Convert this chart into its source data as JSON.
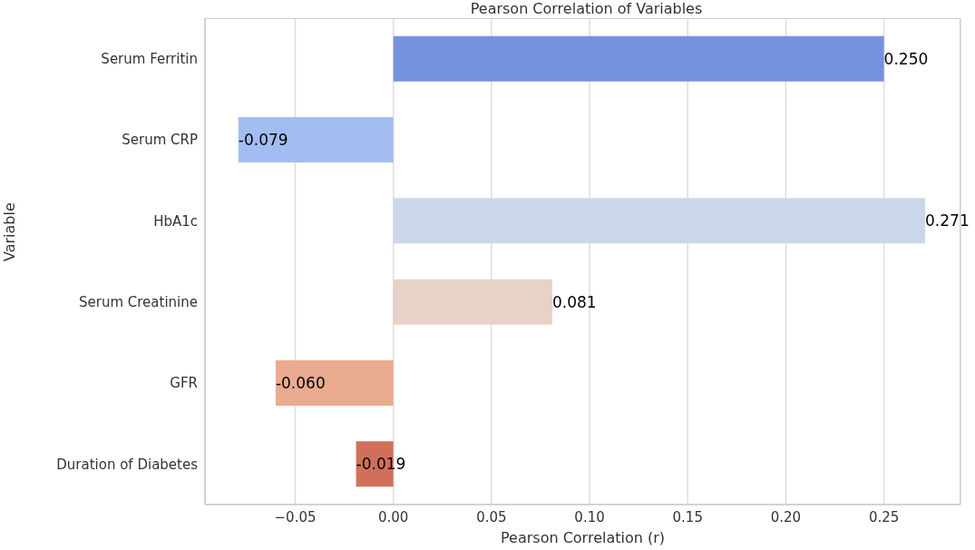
{
  "chart_data": {
    "type": "bar",
    "orientation": "horizontal",
    "title": "Pearson Correlation of Variables",
    "xlabel": "Pearson Correlation (r)",
    "ylabel": "Variable",
    "categories": [
      "Serum Ferritin",
      "Serum CRP",
      "HbA1c",
      "Serum Creatinine",
      "GFR",
      "Duration of Diabetes"
    ],
    "values": [
      0.25,
      -0.079,
      0.271,
      0.081,
      -0.06,
      -0.019
    ],
    "value_labels": [
      "0.250",
      "-0.079",
      "0.271",
      "0.081",
      "-0.060",
      "-0.019"
    ],
    "colors": [
      "#7592de",
      "#a3bdf2",
      "#cad7ea",
      "#e8d1c6",
      "#eaab90",
      "#d0705a"
    ],
    "xlim": [
      -0.096,
      0.289
    ],
    "xticks": [
      {
        "value": -0.05,
        "label": "−0.05"
      },
      {
        "value": 0,
        "label": "0.00"
      },
      0.05,
      {
        "value": 0.1,
        "label": "0.10"
      },
      0.15,
      {
        "value": 0.2,
        "label": "0.20"
      },
      0.25
    ],
    "grid": "x"
  }
}
